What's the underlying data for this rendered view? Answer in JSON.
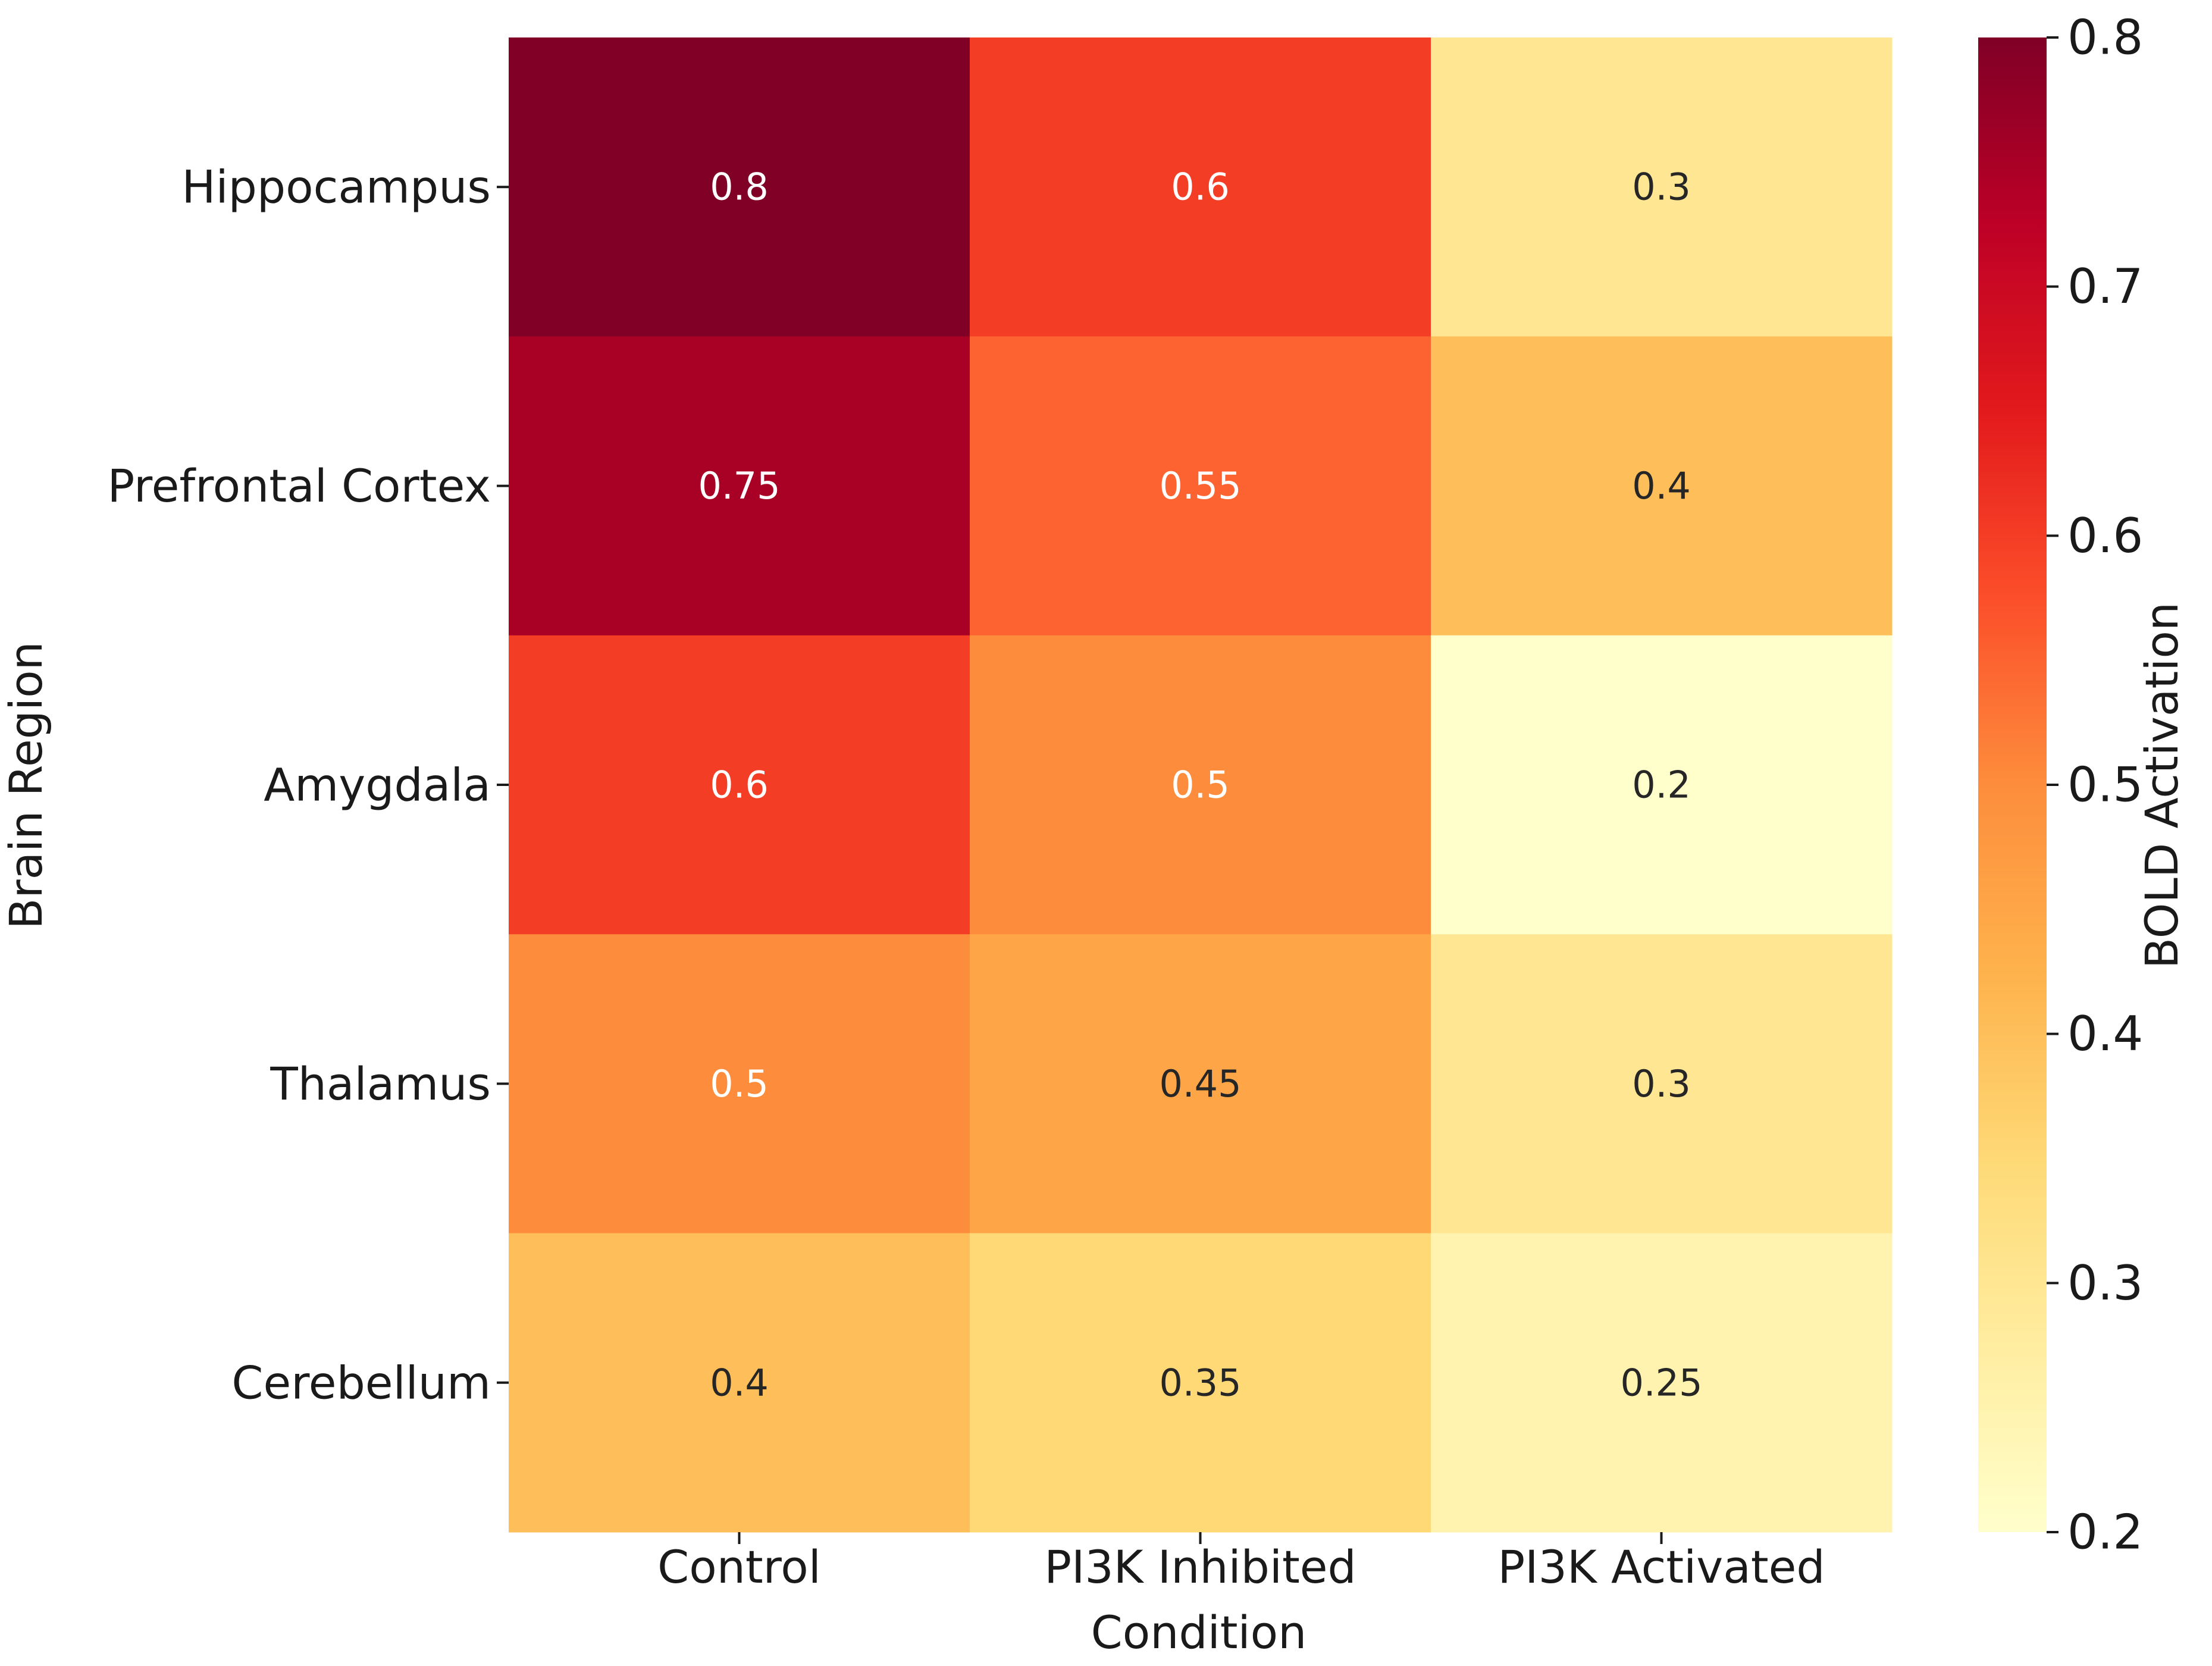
{
  "chart_data": {
    "type": "heatmap",
    "title": "",
    "xlabel": "Condition",
    "ylabel": "Brain Region",
    "x_categories": [
      "Control",
      "PI3K Inhibited",
      "PI3K Activated"
    ],
    "y_categories": [
      "Hippocampus",
      "Prefrontal Cortex",
      "Amygdala",
      "Thalamus",
      "Cerebellum"
    ],
    "values": [
      [
        0.8,
        0.6,
        0.3
      ],
      [
        0.75,
        0.55,
        0.4
      ],
      [
        0.6,
        0.5,
        0.2
      ],
      [
        0.5,
        0.45,
        0.3
      ],
      [
        0.4,
        0.35,
        0.25
      ]
    ],
    "cell_labels": [
      [
        "0.8",
        "0.6",
        "0.3"
      ],
      [
        "0.75",
        "0.55",
        "0.4"
      ],
      [
        "0.6",
        "0.5",
        "0.2"
      ],
      [
        "0.5",
        "0.45",
        "0.3"
      ],
      [
        "0.4",
        "0.35",
        "0.25"
      ]
    ],
    "colormap": "YlOrRd",
    "colorbar": {
      "label": "BOLD Activation",
      "range": [
        0.2,
        0.8
      ],
      "ticks": [
        0.2,
        0.3,
        0.4,
        0.5,
        0.6,
        0.7,
        0.8
      ],
      "tick_labels": [
        "0.2",
        "0.3",
        "0.4",
        "0.5",
        "0.6",
        "0.7",
        "0.8"
      ]
    },
    "colors": {
      "text_dark": "#262626",
      "text_light": "#ffffff",
      "axis": "#1a1a1a"
    }
  }
}
